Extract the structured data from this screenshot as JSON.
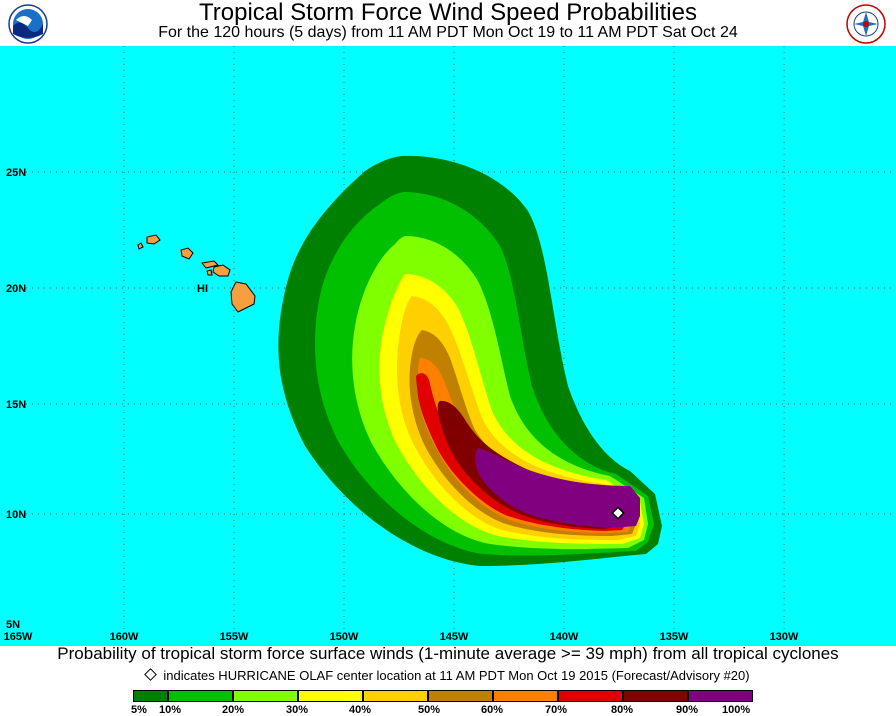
{
  "header": {
    "title": "Tropical Storm Force Wind Speed Probabilities",
    "subtitle": "For the 120 hours (5 days) from 11 AM PDT Mon Oct 19 to 11 AM PDT Sat Oct 24"
  },
  "logos": {
    "left": {
      "icon": "noaa-logo",
      "text": "NOAA"
    },
    "right": {
      "icon": "national-weather-service-logo",
      "text": "NATIONAL WEATHER SERVICE"
    }
  },
  "map": {
    "ocean_color": "#00ffff",
    "land_color": "#f4a040",
    "lat_labels": [
      "25N",
      "20N",
      "15N",
      "10N",
      "5N"
    ],
    "lon_labels": [
      "165W",
      "160W",
      "155W",
      "150W",
      "145W",
      "140W",
      "135W",
      "130W"
    ],
    "place_label": "HI",
    "storm_marker": {
      "name": "HURRICANE OLAF",
      "lat": 10.0,
      "lon": -137.5
    }
  },
  "footer": {
    "caption": "Probability of tropical storm force surface winds (1-minute average >= 39 mph) from all tropical cyclones",
    "marker_note": "indicates HURRICANE OLAF center location at 11 AM PDT Mon Oct 19 2015 (Forecast/Advisory #20)"
  },
  "legend": {
    "bins": [
      {
        "color": "#008000"
      },
      {
        "color": "#00c000"
      },
      {
        "color": "#80ff00"
      },
      {
        "color": "#ffff00"
      },
      {
        "color": "#ffd000"
      },
      {
        "color": "#c08000"
      },
      {
        "color": "#ff8000"
      },
      {
        "color": "#e00000"
      },
      {
        "color": "#800000"
      },
      {
        "color": "#800080"
      }
    ],
    "labels": [
      "5%",
      "10%",
      "20%",
      "30%",
      "40%",
      "50%",
      "60%",
      "70%",
      "80%",
      "90%",
      "100%"
    ]
  }
}
